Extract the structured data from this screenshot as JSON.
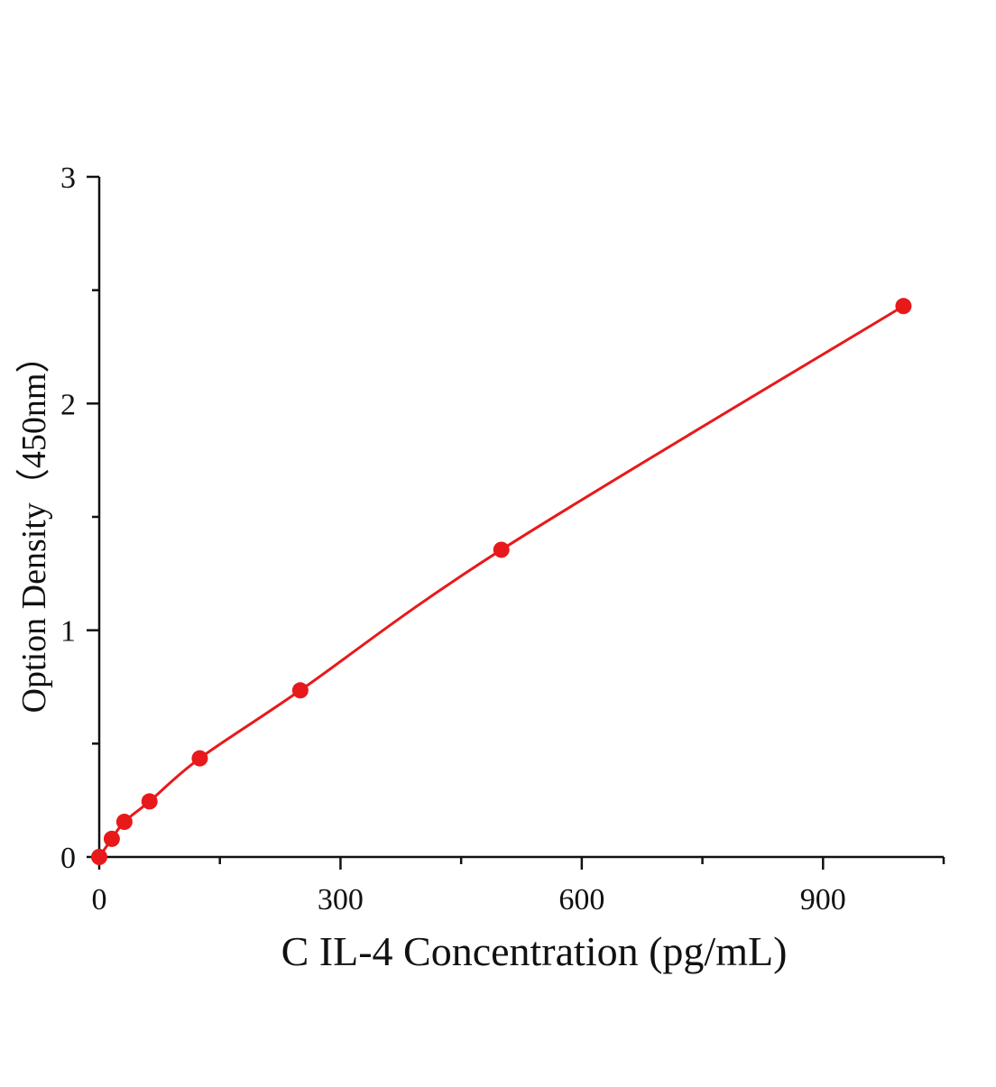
{
  "chart_data": {
    "type": "scatter",
    "title": "",
    "xlabel": "C IL-4 Concentration (pg/mL)",
    "ylabel": "Option Density（450nm）",
    "xlim": [
      0,
      1050
    ],
    "ylim": [
      0,
      3
    ],
    "x_ticks": [
      0,
      300,
      600,
      900
    ],
    "x_minor_ticks": [
      150,
      450,
      750,
      1050
    ],
    "y_ticks": [
      0,
      1,
      2,
      3
    ],
    "y_minor_ticks": [
      0.5,
      1.5,
      2.5
    ],
    "x_tick_labels": [
      "0",
      "300",
      "600",
      "900"
    ],
    "y_tick_labels": [
      "0",
      "1",
      "2",
      "3"
    ],
    "grid": false,
    "legend": "none",
    "series": [
      {
        "x": [
          0,
          15.6,
          31.25,
          62.5,
          125,
          250,
          500,
          1000
        ],
        "y": [
          0.0,
          0.08,
          0.155,
          0.245,
          0.435,
          0.735,
          1.355,
          2.43
        ],
        "color": "#e8191a",
        "fit_line": true
      }
    ]
  }
}
